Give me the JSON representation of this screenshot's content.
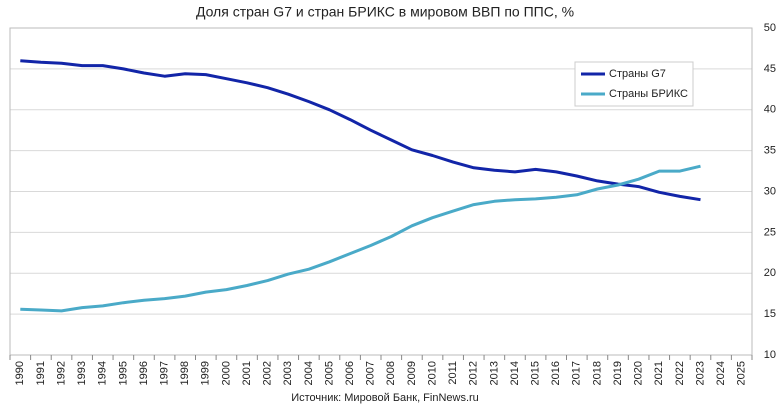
{
  "chart_data": {
    "type": "line",
    "title": "Доля стран G7 и стран БРИКС в мировом ВВП по ППС, %",
    "source": "Источник: Мировой Банк, FinNews.ru",
    "categories": [
      "1990",
      "1991",
      "1992",
      "1993",
      "1994",
      "1995",
      "1996",
      "1997",
      "1998",
      "1999",
      "2000",
      "2001",
      "2002",
      "2003",
      "2004",
      "2005",
      "2006",
      "2007",
      "2008",
      "2009",
      "2010",
      "2011",
      "2012",
      "2013",
      "2014",
      "2015",
      "2016",
      "2017",
      "2018",
      "2019",
      "2020",
      "2021",
      "2022",
      "2023",
      "2024",
      "2025"
    ],
    "series": [
      {
        "name": "Страны G7",
        "color": "#1225a8",
        "values": [
          46.0,
          45.8,
          45.7,
          45.4,
          45.4,
          45.0,
          44.5,
          44.1,
          44.4,
          44.3,
          43.8,
          43.3,
          42.7,
          41.9,
          41.0,
          40.0,
          38.8,
          37.5,
          36.3,
          35.1,
          34.4,
          33.6,
          32.9,
          32.6,
          32.4,
          32.7,
          32.4,
          31.9,
          31.3,
          30.9,
          30.6,
          29.9,
          29.4,
          29.0,
          null,
          null
        ]
      },
      {
        "name": "Страны БРИКС",
        "color": "#4aaac8",
        "values": [
          15.6,
          15.5,
          15.4,
          15.8,
          16.0,
          16.4,
          16.7,
          16.9,
          17.2,
          17.7,
          18.0,
          18.5,
          19.1,
          19.9,
          20.5,
          21.4,
          22.4,
          23.4,
          24.5,
          25.8,
          26.8,
          27.6,
          28.4,
          28.8,
          29.0,
          29.1,
          29.3,
          29.6,
          30.3,
          30.8,
          31.5,
          32.5,
          32.5,
          33.1,
          null,
          null
        ]
      }
    ],
    "ylim": [
      10,
      50
    ],
    "yticks": [
      10,
      15,
      20,
      25,
      30,
      35,
      40,
      45,
      50
    ],
    "grid": true,
    "legend": "upper-right"
  }
}
